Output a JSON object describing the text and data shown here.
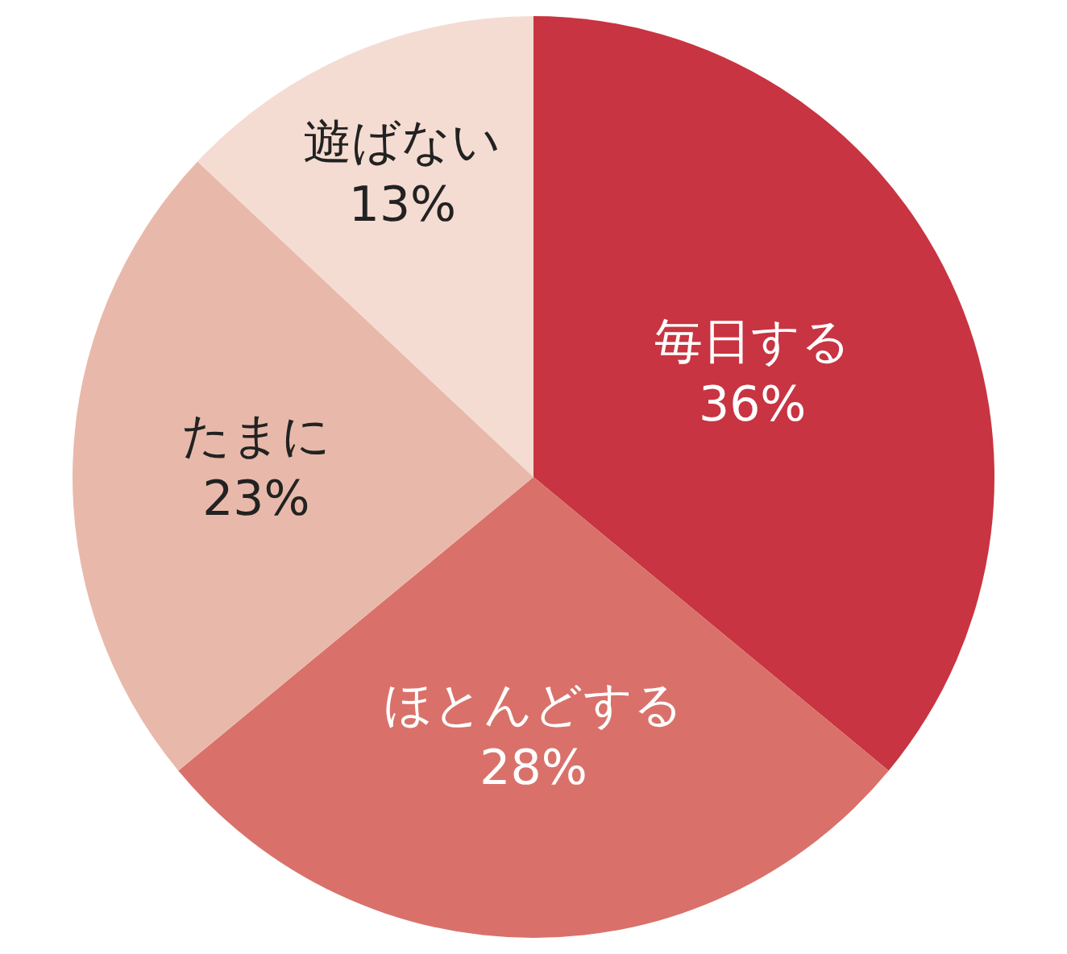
{
  "chart_data": {
    "type": "pie",
    "categories": [
      "毎日する",
      "ほとんどする",
      "たまに",
      "遊ばない"
    ],
    "values": [
      36,
      28,
      23,
      13
    ],
    "value_labels": [
      "36%",
      "28%",
      "23%",
      "13%"
    ],
    "colors": [
      "#c83441",
      "#d9716a",
      "#e8b9aa",
      "#f4dcd2"
    ],
    "legend": false
  }
}
